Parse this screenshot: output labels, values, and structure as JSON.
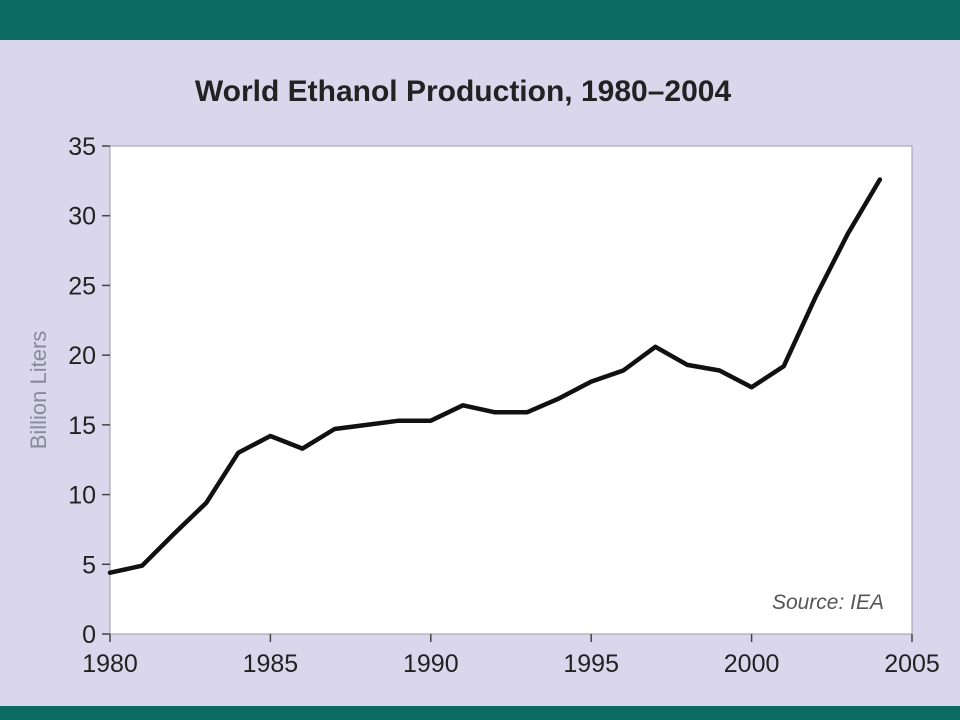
{
  "colors": {
    "header_bar": "#0b6b63",
    "panel_background": "#dad7ec",
    "plot_background": "#ffffff",
    "line": "#111111",
    "axis_text": "#222222",
    "ylabel_text": "#8a8a9a",
    "source_text": "#555555"
  },
  "chart_data": {
    "type": "line",
    "title": "World Ethanol Production, 1980–2004",
    "xlabel": "",
    "ylabel": "Billion Liters",
    "xlim": [
      1980,
      2005
    ],
    "ylim": [
      0,
      35
    ],
    "xticks": [
      1980,
      1985,
      1990,
      1995,
      2000,
      2005
    ],
    "yticks": [
      0,
      5,
      10,
      15,
      20,
      25,
      30,
      35
    ],
    "grid": false,
    "annotation": "Source: IEA",
    "series": [
      {
        "x": [
          1980,
          1981,
          1982,
          1983,
          1984,
          1985,
          1986,
          1987,
          1988,
          1989,
          1990,
          1991,
          1992,
          1993,
          1994,
          1995,
          1996,
          1997,
          1998,
          1999,
          2000,
          2001,
          2002,
          2003,
          2004
        ],
        "y": [
          4.4,
          4.9,
          7.2,
          9.4,
          13.0,
          14.2,
          13.3,
          14.7,
          15.0,
          15.3,
          15.3,
          16.4,
          15.9,
          15.9,
          16.9,
          18.1,
          18.9,
          20.6,
          19.3,
          18.9,
          17.7,
          19.2,
          24.2,
          28.7,
          32.6
        ]
      }
    ]
  }
}
